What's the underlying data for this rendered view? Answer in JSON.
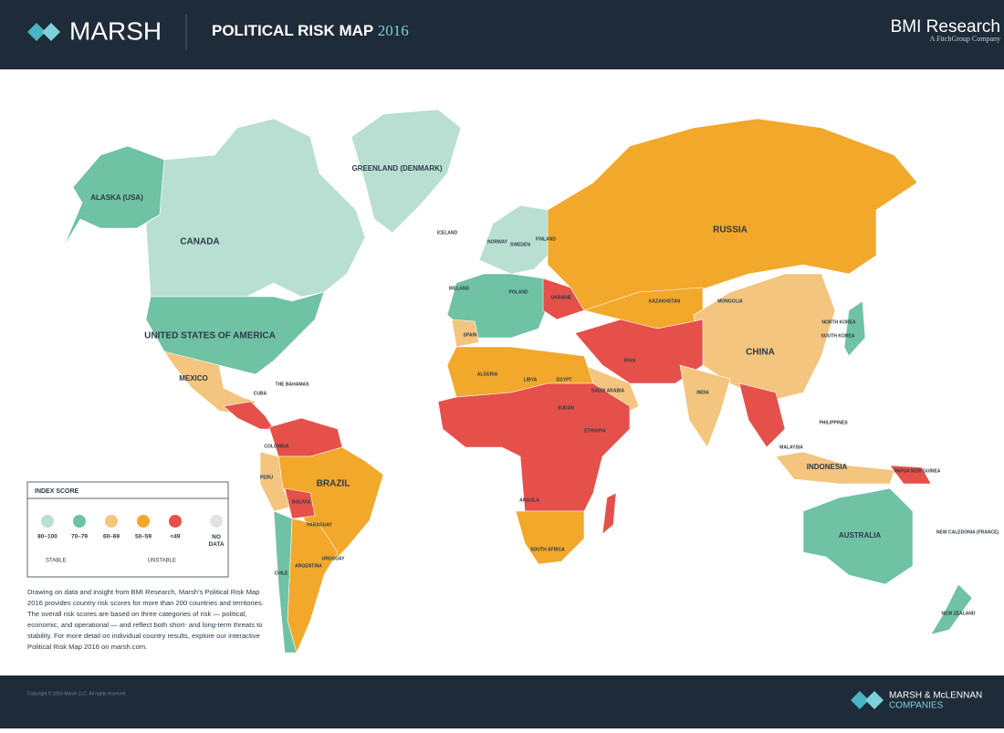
{
  "header": {
    "logo": "MARSH",
    "title": "POLITICAL RISK MAP",
    "year": "2016",
    "partner": "BMI Research",
    "partner_sub": "A FitchGroup Company"
  },
  "map": {
    "labels": [
      "ALASKA (USA)",
      "CANADA",
      "GREENLAND (DENMARK)",
      "UNITED STATES OF AMERICA",
      "MEXICO",
      "THE BAHAMAS",
      "CUBA",
      "COLOMBIA",
      "BRAZIL",
      "PERU",
      "BOLIVIA",
      "PARAGUAY",
      "ARGENTINA",
      "CHILE",
      "URUGUAY",
      "ICELAND",
      "NORWAY",
      "SWEDEN",
      "FINLAND",
      "IRELAND",
      "POLAND",
      "UKRAINE",
      "SPAIN",
      "RUSSIA",
      "KAZAKHSTAN",
      "MONGOLIA",
      "CHINA",
      "INDIA",
      "IRAN",
      "SAUDI ARABIA",
      "ALGERIA",
      "LIBYA",
      "EGYPT",
      "SUDAN",
      "ETHIOPIA",
      "SOUTH AFRICA",
      "ANGOLA",
      "INDONESIA",
      "MALAYSIA",
      "PHILIPPINES",
      "AUSTRALIA",
      "NEW ZEALAND",
      "PAPUA NEW GUINEA",
      "NEW CALEDONIA (FRANCE)",
      "SOUTH KOREA",
      "NORTH KOREA"
    ]
  },
  "legend": {
    "title": "INDEX SCORE",
    "items": [
      {
        "label": "80–100",
        "color": "#b9dfd2"
      },
      {
        "label": "70–79",
        "color": "#6fc2a4"
      },
      {
        "label": "60–69",
        "color": "#f4c57f"
      },
      {
        "label": "50–59",
        "color": "#f2a82a"
      },
      {
        "label": "<49",
        "color": "#e5504a"
      },
      {
        "label": "NO DATA",
        "color": "#e3e3e3"
      }
    ],
    "stable": "STABLE",
    "unstable": "UNSTABLE"
  },
  "description": "Drawing on data and insight from BMI Research, Marsh’s Political Risk Map 2016 provides country risk scores for more than 200 countries and territories. The overall risk scores are based on three categories of risk — political, economic, and operational — and reflect both short- and long-term threats to stability. For more detail on individual country results, explore our interactive Political Risk Map 2016 on marsh.com.",
  "footer": {
    "copyright": "Copyright © 2016 Marsh LLC. All rights reserved.",
    "logo_top": "MARSH & McLENNAN",
    "logo_bottom": "COMPANIES"
  }
}
